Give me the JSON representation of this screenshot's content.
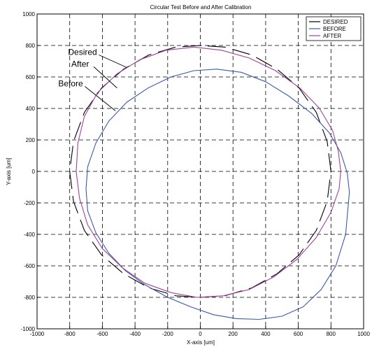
{
  "chart_data": {
    "type": "line",
    "title": "Circular Test Before and After Calibration",
    "xlabel": "X-axis [um]",
    "ylabel": "Y-axis [um]",
    "xlim": [
      -1000,
      1000
    ],
    "ylim": [
      -1000,
      1000
    ],
    "xticks": [
      "-1000",
      "-800",
      "-600",
      "-400",
      "-200",
      "0",
      "200",
      "400",
      "600",
      "800",
      "1000"
    ],
    "yticks": [
      "-1000",
      "-800",
      "-600",
      "-400",
      "-200",
      "0",
      "200",
      "400",
      "600",
      "800",
      "1000"
    ],
    "grid": true,
    "legend_position": "top-right",
    "series": [
      {
        "name": "DESIRED",
        "color": "#000000",
        "style": "dashed",
        "x": [
          800,
          777,
          710,
          605,
          470,
          315,
          150,
          0,
          -150,
          -315,
          -470,
          -605,
          -710,
          -777,
          -800,
          -777,
          -710,
          -605,
          -470,
          -315,
          -150,
          0,
          150,
          315,
          470,
          605,
          710,
          777,
          800
        ],
        "y": [
          0,
          190,
          375,
          530,
          650,
          740,
          790,
          800,
          790,
          740,
          650,
          530,
          375,
          190,
          0,
          -190,
          -375,
          -530,
          -650,
          -740,
          -790,
          -800,
          -790,
          -740,
          -650,
          -530,
          -375,
          -190,
          0
        ]
      },
      {
        "name": "BEFORE",
        "color": "#3b5ba8",
        "style": "solid",
        "x": [
          913,
          900,
          860,
          790,
          680,
          540,
          400,
          250,
          100,
          -40,
          -180,
          -320,
          -450,
          -560,
          -640,
          -690,
          -700,
          -690,
          -640,
          -560,
          -460,
          -340,
          -200,
          -60,
          80,
          220,
          360,
          500,
          630,
          740,
          830,
          890,
          913
        ],
        "y": [
          -130,
          -10,
          120,
          245,
          370,
          480,
          570,
          630,
          650,
          640,
          600,
          530,
          440,
          320,
          180,
          30,
          -110,
          -250,
          -390,
          -520,
          -630,
          -720,
          -800,
          -860,
          -910,
          -935,
          -940,
          -920,
          -860,
          -750,
          -600,
          -400,
          -130
        ]
      },
      {
        "name": "AFTER",
        "color": "#a0449a",
        "style": "solid",
        "x": [
          860,
          845,
          810,
          730,
          610,
          460,
          300,
          130,
          -40,
          -210,
          -370,
          -510,
          -630,
          -710,
          -750,
          -760,
          -740,
          -690,
          -600,
          -480,
          -340,
          -180,
          -20,
          140,
          300,
          450,
          590,
          710,
          800,
          850,
          860
        ],
        "y": [
          0,
          130,
          260,
          400,
          530,
          640,
          720,
          770,
          790,
          770,
          710,
          620,
          500,
          350,
          180,
          0,
          -170,
          -340,
          -490,
          -610,
          -710,
          -770,
          -800,
          -790,
          -750,
          -670,
          -560,
          -420,
          -260,
          -110,
          0
        ]
      }
    ],
    "annotations": [
      {
        "text": "Desired",
        "x": -810,
        "y": 740,
        "arrow_to": [
          -450,
          660
        ]
      },
      {
        "text": "After",
        "x": -790,
        "y": 665,
        "arrow_to": [
          -510,
          530
        ]
      },
      {
        "text": "Before",
        "x": -870,
        "y": 540,
        "arrow_to": [
          -520,
          385
        ]
      }
    ]
  }
}
